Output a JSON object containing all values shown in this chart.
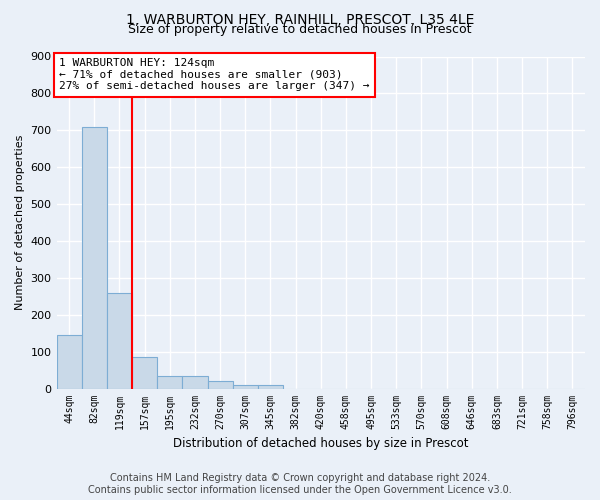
{
  "title_line1": "1, WARBURTON HEY, RAINHILL, PRESCOT, L35 4LE",
  "title_line2": "Size of property relative to detached houses in Prescot",
  "xlabel": "Distribution of detached houses by size in Prescot",
  "ylabel": "Number of detached properties",
  "categories": [
    "44sqm",
    "82sqm",
    "119sqm",
    "157sqm",
    "195sqm",
    "232sqm",
    "270sqm",
    "307sqm",
    "345sqm",
    "382sqm",
    "420sqm",
    "458sqm",
    "495sqm",
    "533sqm",
    "570sqm",
    "608sqm",
    "646sqm",
    "683sqm",
    "721sqm",
    "758sqm",
    "796sqm"
  ],
  "values": [
    145,
    710,
    260,
    85,
    35,
    35,
    20,
    10,
    10,
    0,
    0,
    0,
    0,
    0,
    0,
    0,
    0,
    0,
    0,
    0,
    0
  ],
  "bar_color": "#c9d9e8",
  "bar_edge_color": "#7dadd4",
  "red_line_index": 2,
  "annotation_line1": "1 WARBURTON HEY: 124sqm",
  "annotation_line2": "← 71% of detached houses are smaller (903)",
  "annotation_line3": "27% of semi-detached houses are larger (347) →",
  "annotation_box_color": "white",
  "annotation_box_edge": "red",
  "ylim": [
    0,
    900
  ],
  "yticks": [
    0,
    100,
    200,
    300,
    400,
    500,
    600,
    700,
    800,
    900
  ],
  "footer_line1": "Contains HM Land Registry data © Crown copyright and database right 2024.",
  "footer_line2": "Contains public sector information licensed under the Open Government Licence v3.0.",
  "background_color": "#eaf0f8",
  "plot_bg_color": "#eaf0f8",
  "grid_color": "white",
  "title_fontsize": 10,
  "subtitle_fontsize": 9,
  "annotation_fontsize": 8,
  "footer_fontsize": 7
}
